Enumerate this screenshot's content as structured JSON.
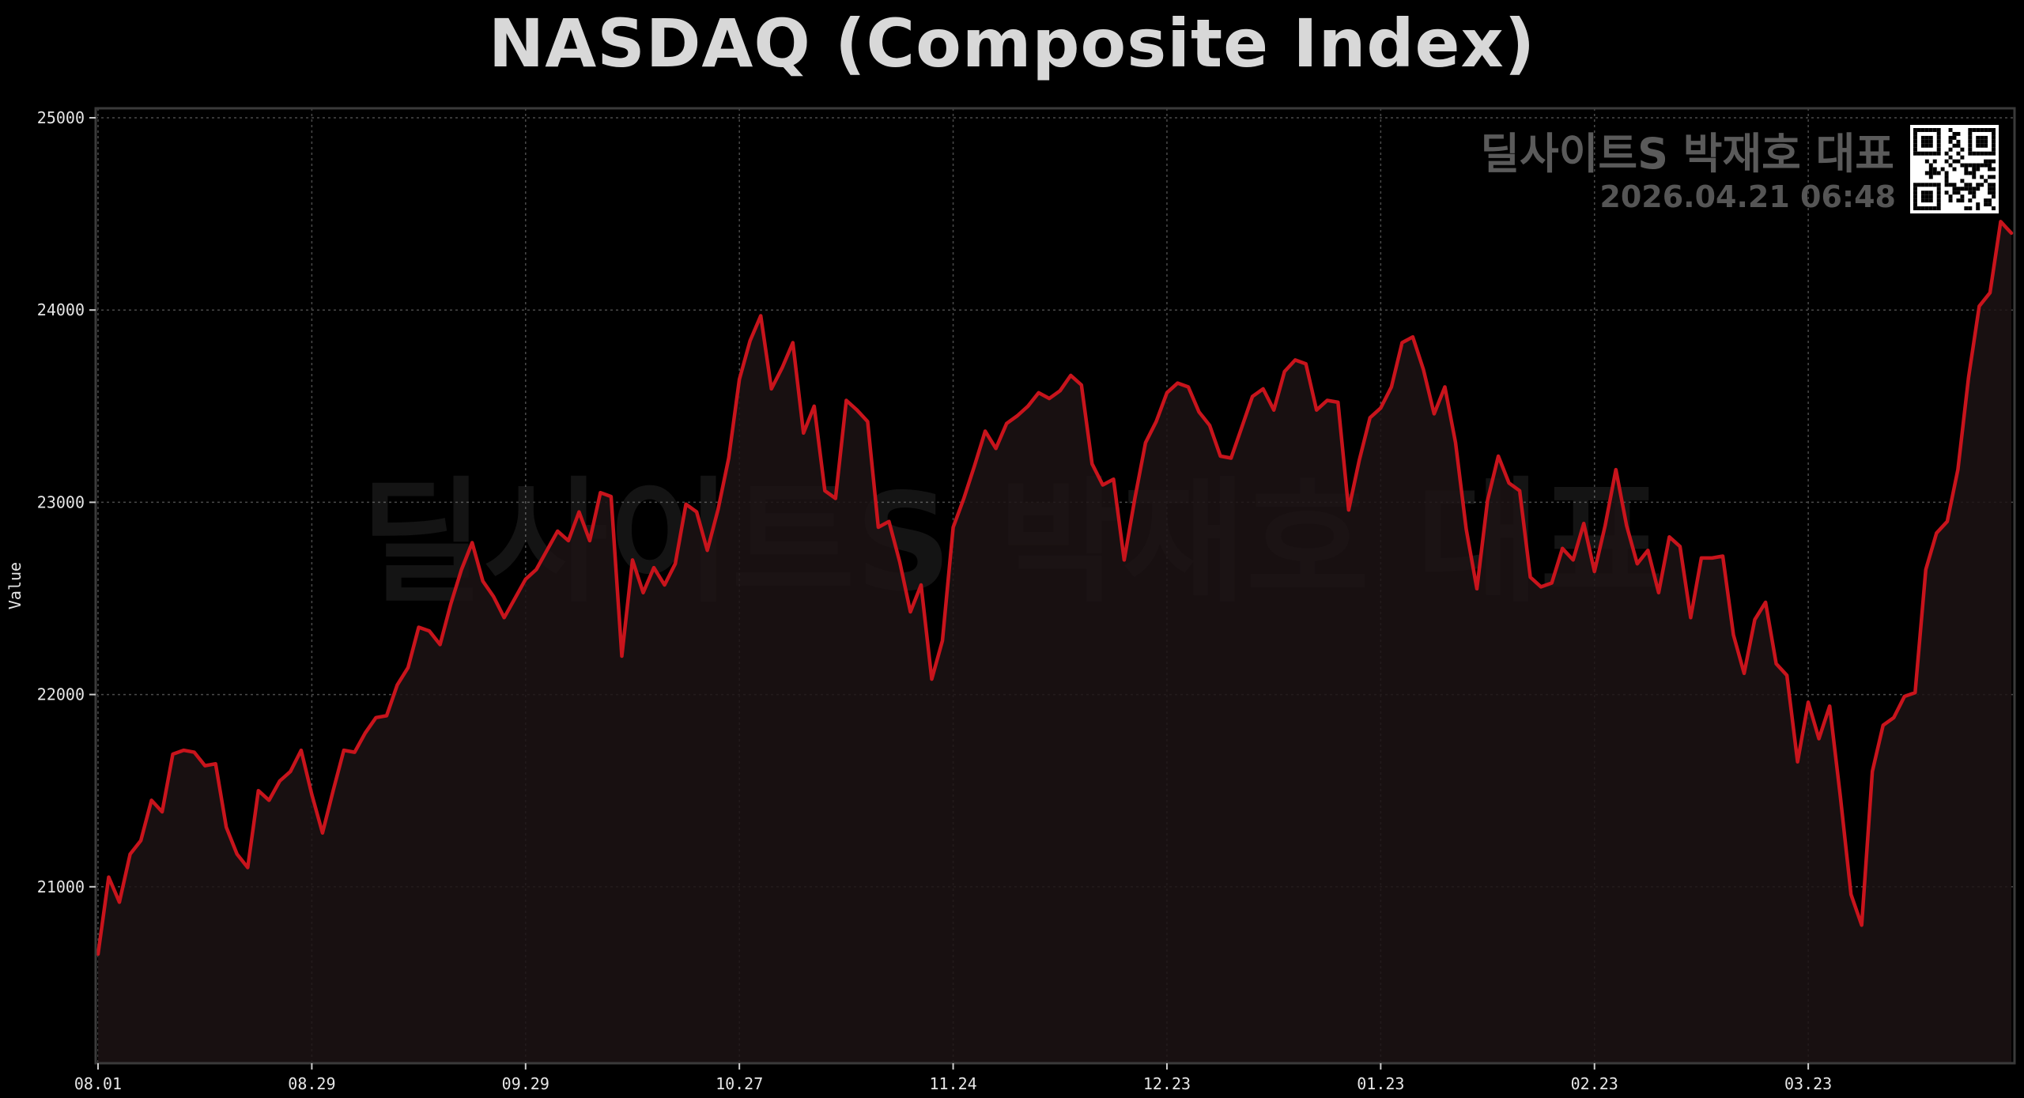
{
  "title": "NASDAQ (Composite Index)",
  "watermark": {
    "center_text": "딜사이트S 박재호 대표",
    "corner_name": "딜사이트S 박재호 대표",
    "corner_date": "2026.04.21 06:48",
    "qr_icon": "qr-code-icon"
  },
  "colors": {
    "background": "#000000",
    "line": "#c8141c",
    "area": "#1c1314",
    "grid": "#4a4a4a",
    "frame": "#3a3a3a"
  },
  "chart_data": {
    "type": "area",
    "title": "NASDAQ (Composite Index)",
    "xlabel": "",
    "ylabel": "Value",
    "ylim": [
      20000,
      25000
    ],
    "yticks": [
      21000,
      22000,
      23000,
      24000,
      25000
    ],
    "grid": true,
    "xticks": [
      {
        "label": "08.01",
        "index": 0
      },
      {
        "label": "08.29",
        "index": 20
      },
      {
        "label": "09.29",
        "index": 40
      },
      {
        "label": "10.27",
        "index": 60
      },
      {
        "label": "11.24",
        "index": 80
      },
      {
        "label": "12.23",
        "index": 100
      },
      {
        "label": "01.23",
        "index": 120
      },
      {
        "label": "02.23",
        "index": 140
      },
      {
        "label": "03.23",
        "index": 160
      }
    ],
    "series": [
      {
        "values": [
          20650,
          21050,
          20920,
          21170,
          21240,
          21450,
          21390,
          21690,
          21710,
          21700,
          21630,
          21640,
          21310,
          21170,
          21100,
          21500,
          21450,
          21550,
          21600,
          21710,
          21480,
          21280,
          21500,
          21710,
          21700,
          21800,
          21880,
          21890,
          22050,
          22140,
          22350,
          22330,
          22260,
          22470,
          22650,
          22790,
          22590,
          22510,
          22400,
          22500,
          22600,
          22650,
          22750,
          22850,
          22800,
          22950,
          22800,
          23050,
          23030,
          22200,
          22700,
          22530,
          22660,
          22570,
          22680,
          22990,
          22950,
          22750,
          22960,
          23230,
          23640,
          23840,
          23970,
          23590,
          23700,
          23830,
          23360,
          23500,
          23060,
          23020,
          23530,
          23480,
          23420,
          22870,
          22900,
          22690,
          22430,
          22570,
          22080,
          22280,
          22870,
          23020,
          23190,
          23370,
          23280,
          23410,
          23450,
          23500,
          23570,
          23540,
          23580,
          23660,
          23610,
          23200,
          23090,
          23120,
          22700,
          23020,
          23310,
          23420,
          23570,
          23620,
          23600,
          23470,
          23400,
          23240,
          23230,
          23390,
          23550,
          23590,
          23480,
          23680,
          23740,
          23720,
          23480,
          23530,
          23520,
          22960,
          23220,
          23440,
          23490,
          23600,
          23830,
          23860,
          23690,
          23460,
          23600,
          23310,
          22860,
          22550,
          23010,
          23240,
          23100,
          23060,
          22610,
          22560,
          22580,
          22760,
          22700,
          22890,
          22640,
          22880,
          23170,
          22880,
          22680,
          22750,
          22530,
          22820,
          22770,
          22400,
          22710,
          22710,
          22720,
          22310,
          22110,
          22390,
          22480,
          22160,
          22100,
          21650,
          21960,
          21770,
          21940,
          21470,
          20960,
          20800,
          21600,
          21840,
          21880,
          21990,
          22010,
          22650,
          22840,
          22900,
          23170,
          23650,
          24020,
          24090,
          24460,
          24400
        ]
      }
    ]
  }
}
